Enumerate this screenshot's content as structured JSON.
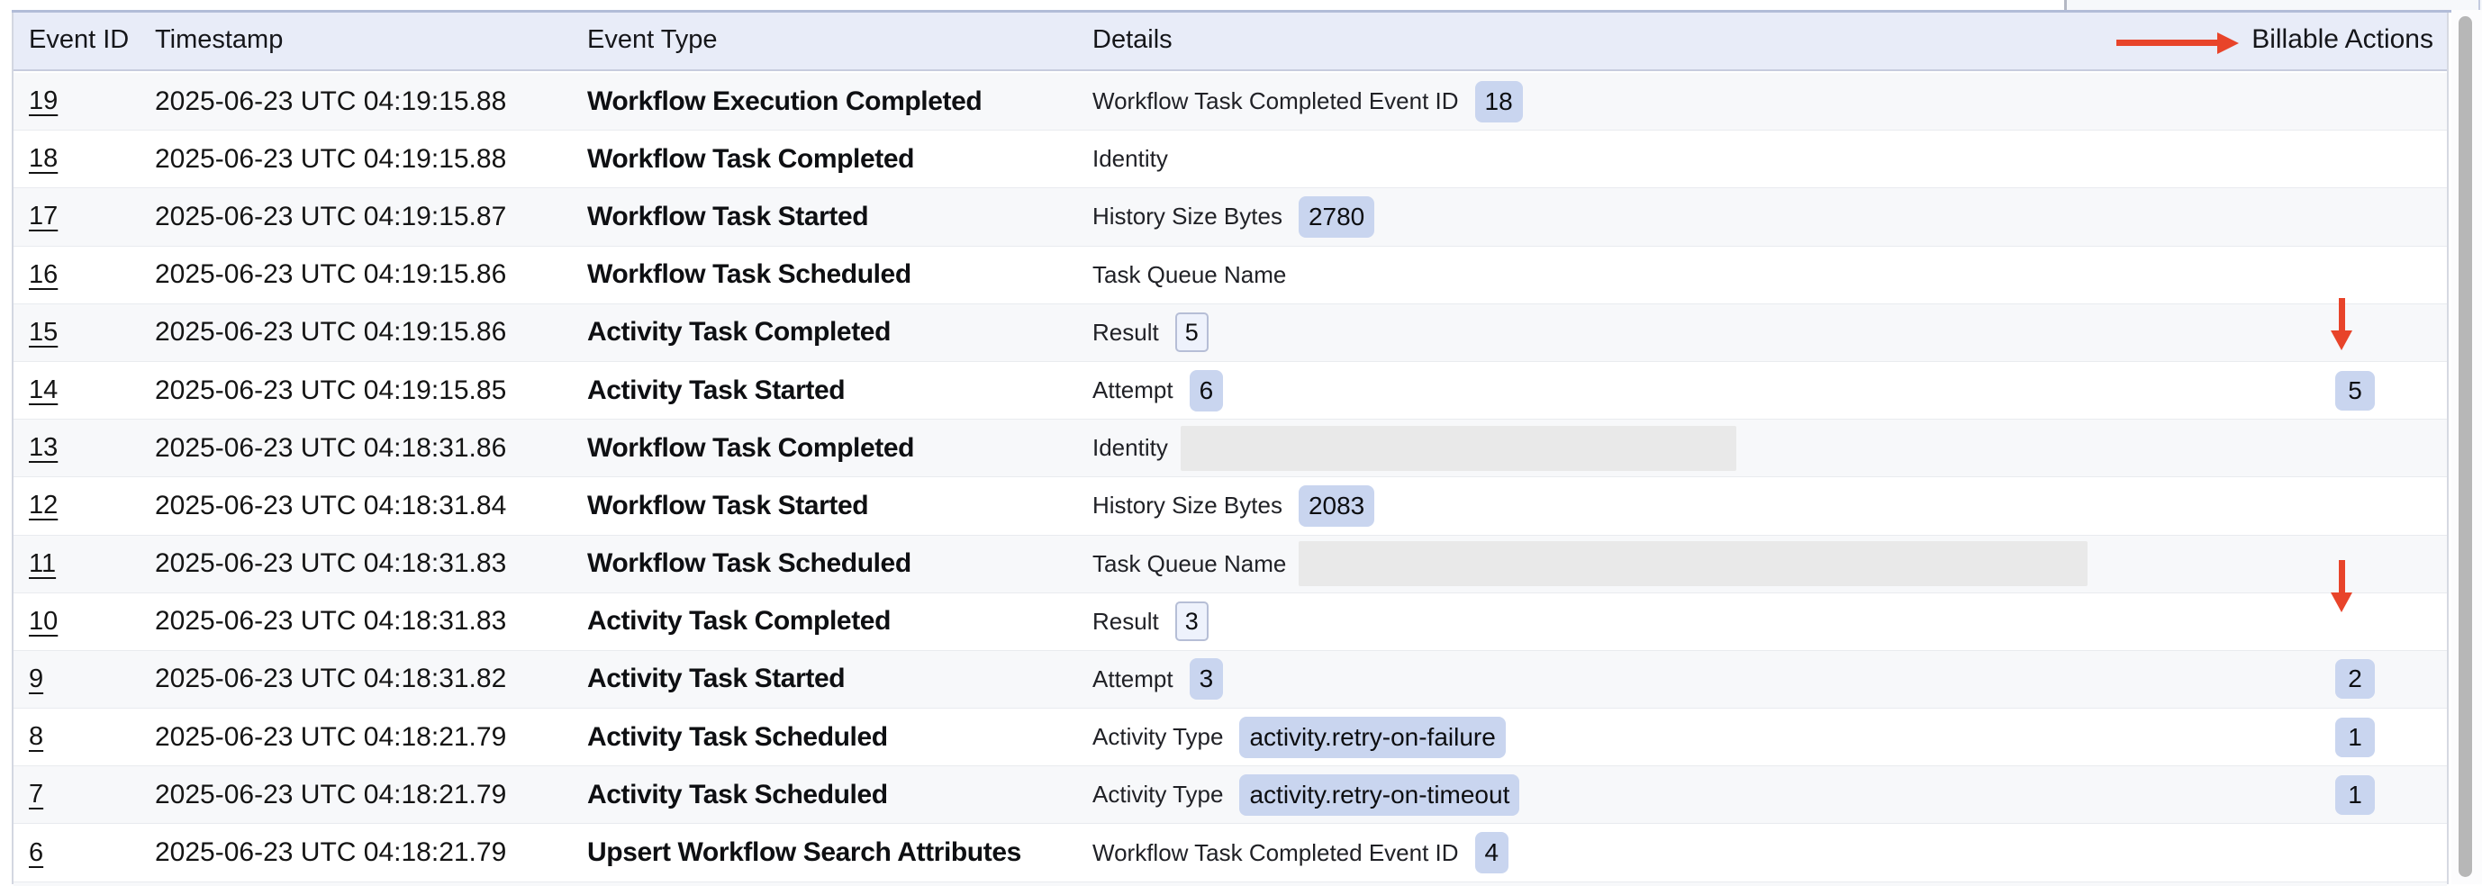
{
  "table": {
    "columns": {
      "event_id": "Event ID",
      "timestamp": "Timestamp",
      "event_type": "Event Type",
      "details": "Details"
    },
    "billable_column": "Billable Actions",
    "rows": [
      {
        "id": "19",
        "timestamp": "2025-06-23 UTC 04:19:15.88",
        "event_type": "Workflow Execution Completed",
        "detail_label": "Workflow Task Completed Event ID",
        "detail_value": "18",
        "billable": ""
      },
      {
        "id": "18",
        "timestamp": "2025-06-23 UTC 04:19:15.88",
        "event_type": "Workflow Task Completed",
        "detail_label": "Identity",
        "detail_value": "",
        "billable": ""
      },
      {
        "id": "17",
        "timestamp": "2025-06-23 UTC 04:19:15.87",
        "event_type": "Workflow Task Started",
        "detail_label": "History Size Bytes",
        "detail_value": "2780",
        "billable": ""
      },
      {
        "id": "16",
        "timestamp": "2025-06-23 UTC 04:19:15.86",
        "event_type": "Workflow Task Scheduled",
        "detail_label": "Task Queue Name",
        "detail_value": "",
        "billable": ""
      },
      {
        "id": "15",
        "timestamp": "2025-06-23 UTC 04:19:15.86",
        "event_type": "Activity Task Completed",
        "detail_label": "Result",
        "detail_value": "5",
        "billable": ""
      },
      {
        "id": "14",
        "timestamp": "2025-06-23 UTC 04:19:15.85",
        "event_type": "Activity Task Started",
        "detail_label": "Attempt",
        "detail_value": "6",
        "billable": "5"
      },
      {
        "id": "13",
        "timestamp": "2025-06-23 UTC 04:18:31.86",
        "event_type": "Workflow Task Completed",
        "detail_label": "Identity",
        "detail_value": "",
        "detail_value_redacted": true,
        "billable": ""
      },
      {
        "id": "12",
        "timestamp": "2025-06-23 UTC 04:18:31.84",
        "event_type": "Workflow Task Started",
        "detail_label": "History Size Bytes",
        "detail_value": "2083",
        "billable": ""
      },
      {
        "id": "11",
        "timestamp": "2025-06-23 UTC 04:18:31.83",
        "event_type": "Workflow Task Scheduled",
        "detail_label": "Task Queue Name",
        "detail_value": "",
        "detail_value_redacted": true,
        "billable": ""
      },
      {
        "id": "10",
        "timestamp": "2025-06-23 UTC 04:18:31.83",
        "event_type": "Activity Task Completed",
        "detail_label": "Result",
        "detail_value": "3",
        "billable": ""
      },
      {
        "id": "9",
        "timestamp": "2025-06-23 UTC 04:18:31.82",
        "event_type": "Activity Task Started",
        "detail_label": "Attempt",
        "detail_value": "3",
        "billable": "2"
      },
      {
        "id": "8",
        "timestamp": "2025-06-23 UTC 04:18:21.79",
        "event_type": "Activity Task Scheduled",
        "detail_label": "Activity Type",
        "detail_value": "activity.retry-on-failure",
        "billable": "1"
      },
      {
        "id": "7",
        "timestamp": "2025-06-23 UTC 04:18:21.79",
        "event_type": "Activity Task Scheduled",
        "detail_label": "Activity Type",
        "detail_value": "activity.retry-on-timeout",
        "billable": "1"
      },
      {
        "id": "6",
        "timestamp": "2025-06-23 UTC 04:18:21.79",
        "event_type": "Upsert Workflow Search Attributes",
        "detail_label": "Workflow Task Completed Event ID",
        "detail_value": "4",
        "billable": ""
      }
    ]
  },
  "annotations": {
    "header_arrow_points_to": "Billable Actions",
    "down_arrow_1_points_to_row": "14",
    "down_arrow_2_points_to_row": "9"
  },
  "colors": {
    "annotation_red": "#e8442a",
    "header_bg": "#e8ecf8",
    "row_stripe_bg": "#f7f8fa",
    "badge_bg": "#c9d5ef",
    "badge_outline_bg": "#eef2fc",
    "badge_outline_border": "#b6bed6",
    "redacted_bg": "#e9e9e9"
  }
}
